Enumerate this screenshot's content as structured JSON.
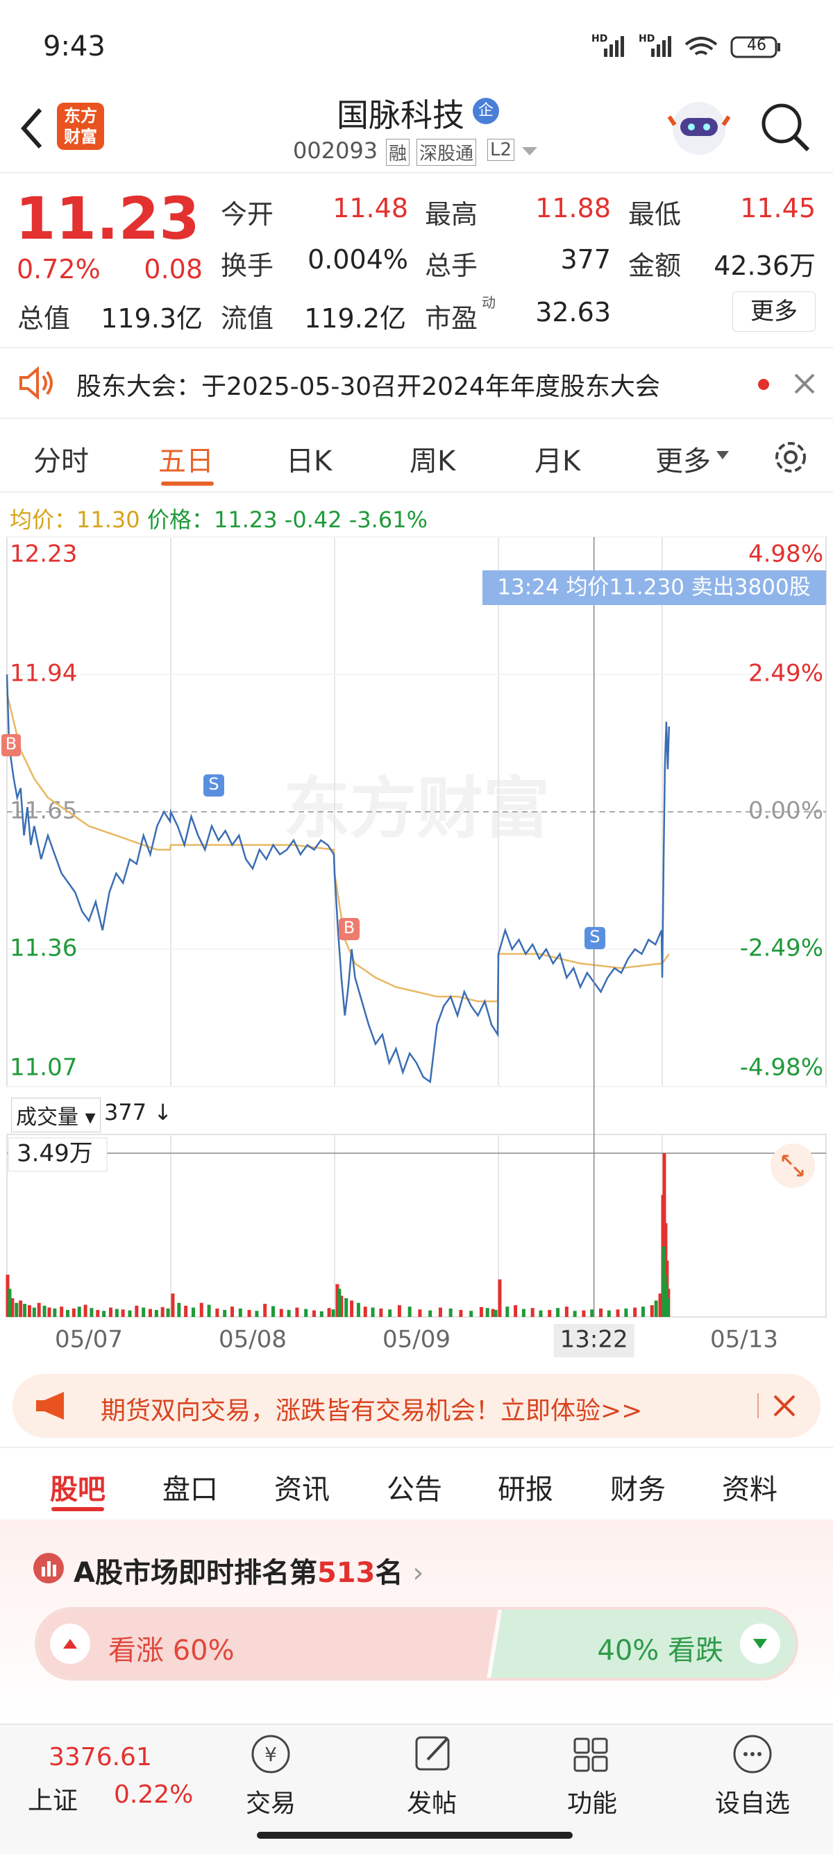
{
  "status_bar": {
    "time": "9:43",
    "network": [
      "HD",
      "HD"
    ],
    "battery": "46"
  },
  "header": {
    "logo": [
      "东方",
      "财富"
    ],
    "title": "国脉科技",
    "badge": "企",
    "code": "002093",
    "tags": [
      "融",
      "深股通",
      "L2"
    ]
  },
  "quote": {
    "price": "11.23",
    "change_pct": "0.72%",
    "change": "0.08",
    "stats": [
      [
        [
          "今开",
          "11.48"
        ],
        [
          "最高",
          "11.88"
        ],
        [
          "最低",
          "11.45"
        ]
      ],
      [
        [
          "换手",
          "0.004%"
        ],
        [
          "总手",
          "377"
        ],
        [
          "金额",
          "42.36万"
        ]
      ],
      [
        [
          "总值",
          "119.3亿"
        ],
        [
          "流值",
          "119.2亿"
        ],
        [
          "市盈",
          "32.63"
        ]
      ]
    ],
    "pe_sup": "动",
    "more": "更多"
  },
  "notice": {
    "text": "股东大会：于2025-05-30召开2024年年度股东大会"
  },
  "tabs": {
    "items": [
      "分时",
      "五日",
      "日K",
      "周K",
      "月K",
      "更多"
    ]
  },
  "chart_data": {
    "type": "line",
    "info": {
      "avg_label": "均价：",
      "avg": "11.30",
      "price_label": "价格：",
      "price": "11.23",
      "change": "-0.42",
      "change_pct": "-3.61%"
    },
    "xlim": [
      0,
      1200
    ],
    "ylim": [
      11.07,
      12.23
    ],
    "yticks": [
      11.07,
      11.36,
      11.65,
      11.94,
      12.23
    ],
    "y2lim": [
      -4.98,
      4.98
    ],
    "y2ticks": [
      {
        "value": -4.98,
        "label": "-4.98%"
      },
      {
        "value": -2.49,
        "label": "-2.49%"
      },
      {
        "value": 0,
        "label": "0.00%"
      },
      {
        "value": 2.49,
        "label": "2.49%"
      },
      {
        "value": 4.98,
        "label": "4.98%"
      }
    ],
    "xticks": [
      {
        "value": 120,
        "label": "05/07"
      },
      {
        "value": 360,
        "label": "05/08"
      },
      {
        "value": 600,
        "label": "05/09"
      },
      {
        "value": 1080,
        "label": "05/13"
      }
    ],
    "xgrid": [
      240,
      480,
      720,
      960
    ],
    "series": [
      {
        "color": "#3b6db3",
        "x": [
          0,
          3,
          6,
          10,
          15,
          20,
          25,
          30,
          35,
          40,
          50,
          60,
          70,
          80,
          90,
          100,
          110,
          120,
          130,
          140,
          150,
          160,
          170,
          180,
          190,
          200,
          210,
          220,
          230,
          239,
          240,
          250,
          260,
          270,
          280,
          290,
          300,
          310,
          320,
          330,
          340,
          350,
          360,
          370,
          380,
          390,
          400,
          410,
          420,
          430,
          440,
          450,
          460,
          470,
          479,
          480,
          485,
          490,
          495,
          500,
          505,
          510,
          520,
          530,
          540,
          550,
          560,
          570,
          580,
          590,
          600,
          610,
          620,
          630,
          640,
          650,
          660,
          670,
          680,
          690,
          700,
          710,
          719,
          720,
          730,
          740,
          750,
          760,
          770,
          780,
          790,
          800,
          810,
          820,
          830,
          840,
          850,
          860,
          870,
          880,
          890,
          900,
          910,
          920,
          930,
          940,
          950,
          959,
          960,
          962,
          964,
          966,
          968,
          970
        ],
        "values": [
          11.94,
          11.8,
          11.76,
          11.72,
          11.68,
          11.7,
          11.6,
          11.66,
          11.58,
          11.62,
          11.55,
          11.6,
          11.56,
          11.52,
          11.5,
          11.48,
          11.44,
          11.42,
          11.46,
          11.4,
          11.48,
          11.52,
          11.5,
          11.55,
          11.54,
          11.6,
          11.56,
          11.62,
          11.65,
          11.63,
          11.65,
          11.62,
          11.58,
          11.64,
          11.6,
          11.57,
          11.62,
          11.59,
          11.61,
          11.58,
          11.6,
          11.55,
          11.53,
          11.57,
          11.55,
          11.58,
          11.56,
          11.57,
          11.59,
          11.56,
          11.58,
          11.57,
          11.59,
          11.58,
          11.56,
          11.52,
          11.4,
          11.3,
          11.22,
          11.28,
          11.36,
          11.3,
          11.25,
          11.2,
          11.16,
          11.18,
          11.12,
          11.15,
          11.1,
          11.14,
          11.12,
          11.09,
          11.08,
          11.2,
          11.24,
          11.26,
          11.22,
          11.27,
          11.24,
          11.22,
          11.25,
          11.2,
          11.18,
          11.35,
          11.4,
          11.36,
          11.38,
          11.35,
          11.37,
          11.34,
          11.36,
          11.33,
          11.35,
          11.3,
          11.32,
          11.28,
          11.31,
          11.29,
          11.27,
          11.3,
          11.32,
          11.31,
          11.34,
          11.36,
          11.35,
          11.38,
          11.37,
          11.4,
          11.3,
          11.55,
          11.75,
          11.84,
          11.74,
          11.83
        ]
      },
      {
        "color": "#e8b860",
        "x": [
          0,
          20,
          40,
          60,
          80,
          100,
          120,
          140,
          160,
          180,
          200,
          220,
          239,
          240,
          300,
          360,
          420,
          479,
          480,
          495,
          510,
          540,
          570,
          600,
          630,
          660,
          690,
          719,
          720,
          780,
          840,
          900,
          959,
          960,
          970
        ],
        "values": [
          11.9,
          11.78,
          11.72,
          11.68,
          11.66,
          11.64,
          11.62,
          11.61,
          11.6,
          11.59,
          11.58,
          11.57,
          11.57,
          11.58,
          11.58,
          11.58,
          11.58,
          11.57,
          11.52,
          11.38,
          11.33,
          11.3,
          11.28,
          11.27,
          11.26,
          11.26,
          11.25,
          11.25,
          11.35,
          11.35,
          11.33,
          11.32,
          11.33,
          11.33,
          11.35
        ]
      }
    ],
    "crosshair": {
      "x": 860,
      "x_label": "13:22",
      "tooltip": "13:24  均价11.230  卖出3800股"
    },
    "markers": [
      "B",
      "S",
      "B",
      "S"
    ],
    "watermark": "东方财富",
    "volume": {
      "label": "成交量",
      "latest": "377",
      "ylim": [
        0,
        34900
      ],
      "yticks": [
        {
          "value": 34900,
          "label": "3.49万"
        }
      ],
      "series": [
        {
          "color": "#e2312f",
          "x": [
            1,
            8,
            20,
            33,
            47,
            62,
            80,
            98,
            115,
            133,
            152,
            170,
            190,
            210,
            228,
            243,
            262,
            285,
            308,
            330,
            355,
            378,
            402,
            425,
            450,
            472,
            484,
            490,
            505,
            525,
            548,
            575,
            605,
            635,
            665,
            695,
            712,
            722,
            745,
            770,
            795,
            820,
            845,
            870,
            895,
            920,
            945,
            957,
            961,
            963,
            965,
            967,
            969
          ],
          "values": [
            9000,
            4000,
            3500,
            2500,
            3000,
            2000,
            2200,
            1800,
            2600,
            1500,
            2000,
            1600,
            2400,
            1700,
            2100,
            5000,
            2400,
            3000,
            1800,
            2200,
            1500,
            2800,
            1700,
            2000,
            1400,
            1900,
            7000,
            4500,
            3500,
            2200,
            1800,
            2500,
            1600,
            2000,
            1500,
            2100,
            1700,
            8000,
            2500,
            1900,
            1500,
            2200,
            1400,
            1800,
            1600,
            2000,
            2500,
            5000,
            26000,
            34900,
            20000,
            12000,
            6000
          ]
        },
        {
          "color": "#1f9a39",
          "x": [
            4,
            14,
            26,
            40,
            55,
            70,
            89,
            106,
            124,
            142,
            161,
            180,
            200,
            219,
            236,
            252,
            273,
            296,
            319,
            342,
            366,
            390,
            413,
            438,
            461,
            478,
            487,
            497,
            515,
            536,
            561,
            590,
            620,
            650,
            680,
            704,
            716,
            733,
            757,
            782,
            807,
            832,
            857,
            882,
            907,
            932,
            951,
            962,
            964,
            966,
            968
          ],
          "values": [
            6000,
            3000,
            2800,
            2000,
            2400,
            1800,
            1500,
            2200,
            1900,
            1300,
            1700,
            1400,
            2000,
            1500,
            1800,
            3000,
            2000,
            2600,
            1500,
            1800,
            1300,
            2300,
            1500,
            1700,
            1200,
            1600,
            6000,
            4000,
            3000,
            2000,
            1600,
            2200,
            1400,
            1800,
            1300,
            1900,
            1500,
            2200,
            1700,
            1400,
            1900,
            1300,
            1600,
            1400,
            1800,
            2200,
            3500,
            15000,
            9000,
            7000,
            4000
          ]
        }
      ]
    }
  },
  "ad": {
    "text": "期货双向交易，涨跌皆有交易机会！立即体验>>"
  },
  "section_tabs": {
    "items": [
      "股吧",
      "盘口",
      "资讯",
      "公告",
      "研报",
      "财务",
      "资料"
    ]
  },
  "ranking": {
    "prefix": "A股市场即时排名第",
    "rank": "513",
    "suffix": "名"
  },
  "sentiment": {
    "labels": [
      "看涨",
      "看跌"
    ],
    "values": [
      60,
      40
    ],
    "value_labels": [
      "60%",
      "40%"
    ]
  },
  "bottom_nav": {
    "index": {
      "value": "3376.61",
      "name": "上证",
      "change": "0.22%"
    },
    "items": [
      "交易",
      "发帖",
      "功能",
      "设自选"
    ]
  }
}
